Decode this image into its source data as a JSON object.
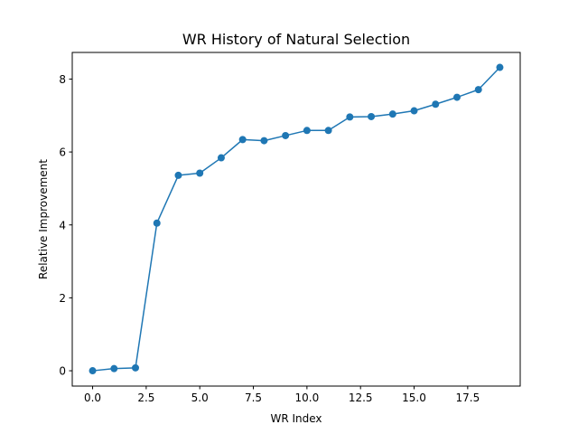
{
  "chart_data": {
    "type": "line",
    "title": "WR History of Natural Selection",
    "xlabel": "WR Index",
    "ylabel": "Relative Improvement",
    "xlim": [
      -0.95,
      19.95
    ],
    "ylim": [
      -0.42,
      8.73
    ],
    "xticks": [
      0.0,
      2.5,
      5.0,
      7.5,
      10.0,
      12.5,
      15.0,
      17.5
    ],
    "xtick_labels": [
      "0.0",
      "2.5",
      "5.0",
      "7.5",
      "10.0",
      "12.5",
      "15.0",
      "17.5"
    ],
    "yticks": [
      0,
      2,
      4,
      6,
      8
    ],
    "ytick_labels": [
      "0",
      "2",
      "4",
      "6",
      "8"
    ],
    "grid": false,
    "marker": "circle",
    "series": [
      {
        "color": "#1f77b4",
        "x": [
          0,
          1,
          2,
          3,
          4,
          5,
          6,
          7,
          8,
          9,
          10,
          11,
          12,
          13,
          14,
          15,
          16,
          17,
          18,
          19
        ],
        "values": [
          0.0,
          0.06,
          0.08,
          4.05,
          5.36,
          5.42,
          5.84,
          6.34,
          6.31,
          6.45,
          6.59,
          6.59,
          6.96,
          6.97,
          7.04,
          7.13,
          7.31,
          7.5,
          7.71,
          8.32
        ]
      }
    ]
  }
}
